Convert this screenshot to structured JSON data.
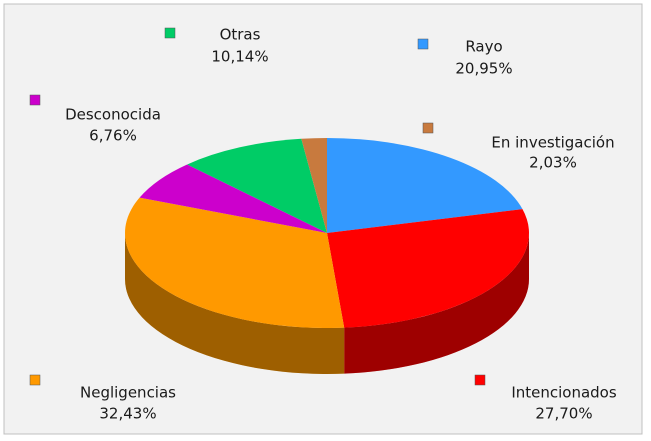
{
  "chart_data": {
    "type": "pie",
    "categories": [
      "Rayo",
      "Intencionados",
      "Negligencias",
      "Desconocida",
      "Otras",
      "En investigación"
    ],
    "values": [
      20.95,
      27.7,
      32.43,
      6.76,
      10.14,
      2.03
    ],
    "value_labels": [
      "20,95%",
      "27,70%",
      "32,43%",
      "6,76%",
      "10,14%",
      "2,03%"
    ],
    "colors": [
      "#3399ff",
      "#ff0000",
      "#ff9900",
      "#cc00cc",
      "#00cc66",
      "#c87a3e"
    ]
  }
}
